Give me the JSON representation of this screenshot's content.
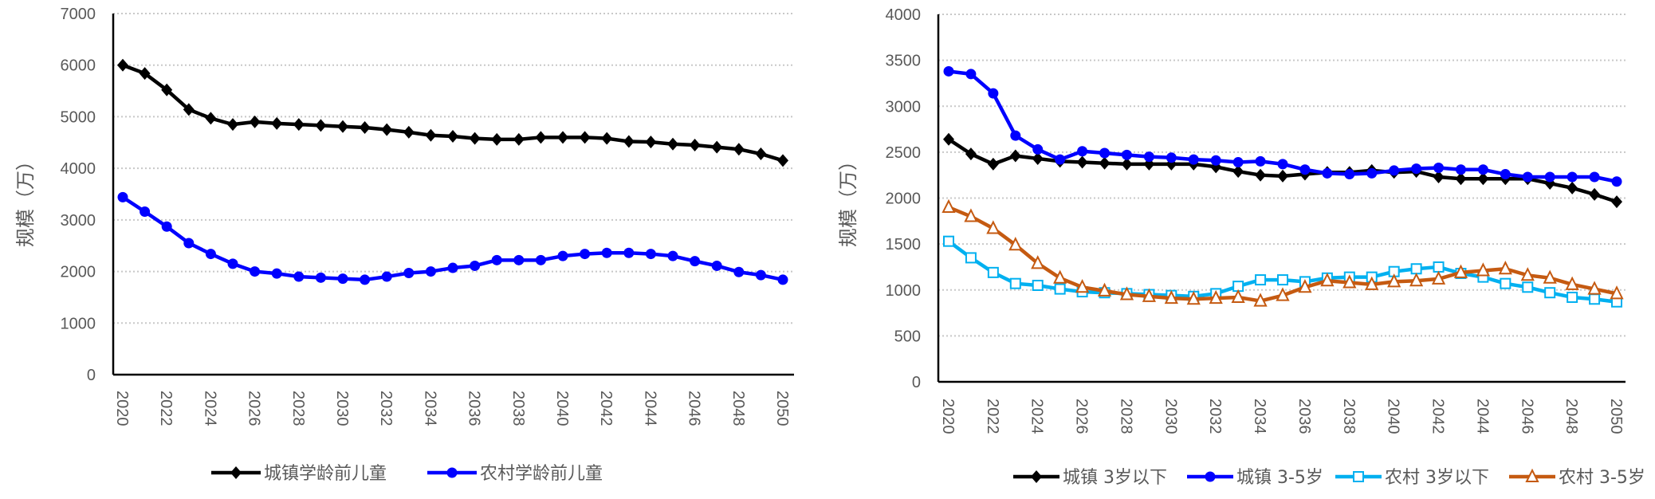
{
  "chart_data": [
    {
      "type": "line",
      "title": "",
      "xlabel": "",
      "ylabel": "规模（万）",
      "ylim": [
        0,
        7000
      ],
      "yticks": [
        0,
        1000,
        2000,
        3000,
        4000,
        5000,
        6000,
        7000
      ],
      "x": [
        2020,
        2021,
        2022,
        2023,
        2024,
        2025,
        2026,
        2027,
        2028,
        2029,
        2030,
        2031,
        2032,
        2033,
        2034,
        2035,
        2036,
        2037,
        2038,
        2039,
        2040,
        2041,
        2042,
        2043,
        2044,
        2045,
        2046,
        2047,
        2048,
        2049,
        2050
      ],
      "xtick_labels": [
        "2020",
        "2022",
        "2024",
        "2026",
        "2028",
        "2030",
        "2032",
        "2034",
        "2036",
        "2038",
        "2040",
        "2042",
        "2044",
        "2046",
        "2048",
        "2050"
      ],
      "grid": "horizontal dotted",
      "legend": "bottom",
      "series": [
        {
          "name": "城镇学龄前儿童",
          "color": "#000000",
          "marker": "diamond",
          "values": [
            6000,
            5840,
            5520,
            5140,
            4970,
            4850,
            4900,
            4870,
            4850,
            4830,
            4810,
            4790,
            4750,
            4700,
            4640,
            4620,
            4580,
            4560,
            4560,
            4600,
            4600,
            4600,
            4580,
            4520,
            4510,
            4470,
            4450,
            4410,
            4370,
            4280,
            4150
          ]
        },
        {
          "name": "农村学龄前儿童",
          "color": "#0000FF",
          "marker": "circle",
          "values": [
            3440,
            3160,
            2870,
            2550,
            2340,
            2150,
            2000,
            1960,
            1900,
            1880,
            1860,
            1840,
            1900,
            1970,
            2000,
            2070,
            2110,
            2220,
            2220,
            2220,
            2300,
            2340,
            2360,
            2360,
            2340,
            2300,
            2200,
            2110,
            1990,
            1930,
            1840
          ]
        }
      ]
    },
    {
      "type": "line",
      "title": "",
      "xlabel": "",
      "ylabel": "规模（万）",
      "ylim": [
        0,
        4000
      ],
      "yticks": [
        0,
        500,
        1000,
        1500,
        2000,
        2500,
        3000,
        3500,
        4000
      ],
      "x": [
        2020,
        2021,
        2022,
        2023,
        2024,
        2025,
        2026,
        2027,
        2028,
        2029,
        2030,
        2031,
        2032,
        2033,
        2034,
        2035,
        2036,
        2037,
        2038,
        2039,
        2040,
        2041,
        2042,
        2043,
        2044,
        2045,
        2046,
        2047,
        2048,
        2049,
        2050
      ],
      "xtick_labels": [
        "2020",
        "2022",
        "2024",
        "2026",
        "2028",
        "2030",
        "2032",
        "2034",
        "2036",
        "2038",
        "2040",
        "2042",
        "2044",
        "2046",
        "2048",
        "2050"
      ],
      "grid": "horizontal dotted",
      "legend": "bottom",
      "series": [
        {
          "name": "城镇 3岁以下",
          "color": "#000000",
          "marker": "diamond",
          "values": [
            2640,
            2480,
            2370,
            2460,
            2430,
            2400,
            2390,
            2380,
            2370,
            2370,
            2370,
            2370,
            2340,
            2290,
            2250,
            2240,
            2260,
            2280,
            2280,
            2300,
            2280,
            2290,
            2230,
            2210,
            2210,
            2210,
            2210,
            2160,
            2110,
            2040,
            1960
          ]
        },
        {
          "name": "城镇 3-5岁",
          "color": "#0000FF",
          "marker": "circle",
          "values": [
            3380,
            3350,
            3140,
            2680,
            2530,
            2420,
            2510,
            2490,
            2470,
            2450,
            2440,
            2420,
            2410,
            2390,
            2400,
            2370,
            2310,
            2270,
            2260,
            2270,
            2300,
            2320,
            2330,
            2310,
            2310,
            2260,
            2230,
            2230,
            2230,
            2230,
            2180
          ]
        },
        {
          "name": "农村 3岁以下",
          "color": "#00B0F0",
          "marker": "square-open",
          "values": [
            1530,
            1350,
            1190,
            1070,
            1050,
            1010,
            980,
            970,
            960,
            950,
            940,
            930,
            960,
            1040,
            1110,
            1110,
            1090,
            1130,
            1140,
            1140,
            1200,
            1230,
            1250,
            1180,
            1140,
            1070,
            1030,
            970,
            920,
            900,
            870
          ]
        },
        {
          "name": "农村 3-5岁",
          "color": "#C55A11",
          "marker": "triangle-open",
          "values": [
            1900,
            1800,
            1670,
            1490,
            1290,
            1130,
            1030,
            990,
            950,
            930,
            910,
            900,
            910,
            920,
            880,
            940,
            1030,
            1100,
            1080,
            1060,
            1090,
            1100,
            1120,
            1190,
            1210,
            1230,
            1160,
            1130,
            1060,
            1010,
            960
          ]
        }
      ]
    }
  ]
}
